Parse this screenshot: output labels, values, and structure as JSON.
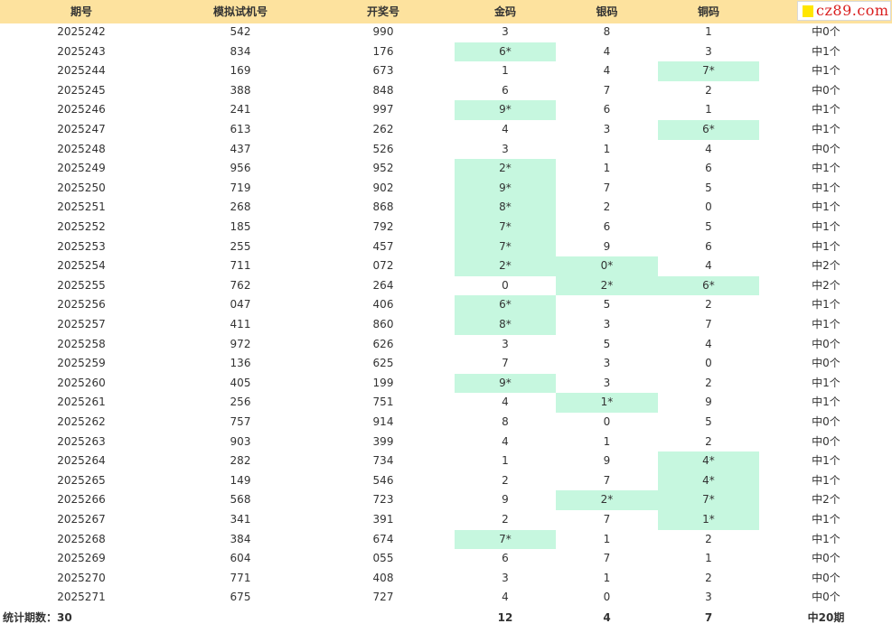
{
  "logo": {
    "text": "cz89.com",
    "accent": "#ffe600",
    "text_color": "#d91c1c"
  },
  "headers": {
    "period": "期号",
    "sim": "模拟试机号",
    "draw": "开奖号",
    "gold": "金码",
    "silver": "银码",
    "bronze": "铜码"
  },
  "colors": {
    "header_bg": "#fde29e",
    "hit_bg": "#c6f7df"
  },
  "rows": [
    {
      "period": "2025242",
      "sim": "542",
      "draw": "990",
      "gold": "3",
      "silver": "8",
      "bronze": "1",
      "result": "中0个",
      "hits": []
    },
    {
      "period": "2025243",
      "sim": "834",
      "draw": "176",
      "gold": "6*",
      "silver": "4",
      "bronze": "3",
      "result": "中1个",
      "hits": [
        "gold"
      ]
    },
    {
      "period": "2025244",
      "sim": "169",
      "draw": "673",
      "gold": "1",
      "silver": "4",
      "bronze": "7*",
      "result": "中1个",
      "hits": [
        "bronze"
      ]
    },
    {
      "period": "2025245",
      "sim": "388",
      "draw": "848",
      "gold": "6",
      "silver": "7",
      "bronze": "2",
      "result": "中0个",
      "hits": []
    },
    {
      "period": "2025246",
      "sim": "241",
      "draw": "997",
      "gold": "9*",
      "silver": "6",
      "bronze": "1",
      "result": "中1个",
      "hits": [
        "gold"
      ]
    },
    {
      "period": "2025247",
      "sim": "613",
      "draw": "262",
      "gold": "4",
      "silver": "3",
      "bronze": "6*",
      "result": "中1个",
      "hits": [
        "bronze"
      ]
    },
    {
      "period": "2025248",
      "sim": "437",
      "draw": "526",
      "gold": "3",
      "silver": "1",
      "bronze": "4",
      "result": "中0个",
      "hits": []
    },
    {
      "period": "2025249",
      "sim": "956",
      "draw": "952",
      "gold": "2*",
      "silver": "1",
      "bronze": "6",
      "result": "中1个",
      "hits": [
        "gold"
      ]
    },
    {
      "period": "2025250",
      "sim": "719",
      "draw": "902",
      "gold": "9*",
      "silver": "7",
      "bronze": "5",
      "result": "中1个",
      "hits": [
        "gold"
      ]
    },
    {
      "period": "2025251",
      "sim": "268",
      "draw": "868",
      "gold": "8*",
      "silver": "2",
      "bronze": "0",
      "result": "中1个",
      "hits": [
        "gold"
      ]
    },
    {
      "period": "2025252",
      "sim": "185",
      "draw": "792",
      "gold": "7*",
      "silver": "6",
      "bronze": "5",
      "result": "中1个",
      "hits": [
        "gold"
      ]
    },
    {
      "period": "2025253",
      "sim": "255",
      "draw": "457",
      "gold": "7*",
      "silver": "9",
      "bronze": "6",
      "result": "中1个",
      "hits": [
        "gold"
      ]
    },
    {
      "period": "2025254",
      "sim": "711",
      "draw": "072",
      "gold": "2*",
      "silver": "0*",
      "bronze": "4",
      "result": "中2个",
      "hits": [
        "gold",
        "silver"
      ]
    },
    {
      "period": "2025255",
      "sim": "762",
      "draw": "264",
      "gold": "0",
      "silver": "2*",
      "bronze": "6*",
      "result": "中2个",
      "hits": [
        "silver",
        "bronze"
      ]
    },
    {
      "period": "2025256",
      "sim": "047",
      "draw": "406",
      "gold": "6*",
      "silver": "5",
      "bronze": "2",
      "result": "中1个",
      "hits": [
        "gold"
      ]
    },
    {
      "period": "2025257",
      "sim": "411",
      "draw": "860",
      "gold": "8*",
      "silver": "3",
      "bronze": "7",
      "result": "中1个",
      "hits": [
        "gold"
      ]
    },
    {
      "period": "2025258",
      "sim": "972",
      "draw": "626",
      "gold": "3",
      "silver": "5",
      "bronze": "4",
      "result": "中0个",
      "hits": []
    },
    {
      "period": "2025259",
      "sim": "136",
      "draw": "625",
      "gold": "7",
      "silver": "3",
      "bronze": "0",
      "result": "中0个",
      "hits": []
    },
    {
      "period": "2025260",
      "sim": "405",
      "draw": "199",
      "gold": "9*",
      "silver": "3",
      "bronze": "2",
      "result": "中1个",
      "hits": [
        "gold"
      ]
    },
    {
      "period": "2025261",
      "sim": "256",
      "draw": "751",
      "gold": "4",
      "silver": "1*",
      "bronze": "9",
      "result": "中1个",
      "hits": [
        "silver"
      ]
    },
    {
      "period": "2025262",
      "sim": "757",
      "draw": "914",
      "gold": "8",
      "silver": "0",
      "bronze": "5",
      "result": "中0个",
      "hits": []
    },
    {
      "period": "2025263",
      "sim": "903",
      "draw": "399",
      "gold": "4",
      "silver": "1",
      "bronze": "2",
      "result": "中0个",
      "hits": []
    },
    {
      "period": "2025264",
      "sim": "282",
      "draw": "734",
      "gold": "1",
      "silver": "9",
      "bronze": "4*",
      "result": "中1个",
      "hits": [
        "bronze"
      ]
    },
    {
      "period": "2025265",
      "sim": "149",
      "draw": "546",
      "gold": "2",
      "silver": "7",
      "bronze": "4*",
      "result": "中1个",
      "hits": [
        "bronze"
      ]
    },
    {
      "period": "2025266",
      "sim": "568",
      "draw": "723",
      "gold": "9",
      "silver": "2*",
      "bronze": "7*",
      "result": "中2个",
      "hits": [
        "silver",
        "bronze"
      ]
    },
    {
      "period": "2025267",
      "sim": "341",
      "draw": "391",
      "gold": "2",
      "silver": "7",
      "bronze": "1*",
      "result": "中1个",
      "hits": [
        "bronze"
      ]
    },
    {
      "period": "2025268",
      "sim": "384",
      "draw": "674",
      "gold": "7*",
      "silver": "1",
      "bronze": "2",
      "result": "中1个",
      "hits": [
        "gold"
      ]
    },
    {
      "period": "2025269",
      "sim": "604",
      "draw": "055",
      "gold": "6",
      "silver": "7",
      "bronze": "1",
      "result": "中0个",
      "hits": []
    },
    {
      "period": "2025270",
      "sim": "771",
      "draw": "408",
      "gold": "3",
      "silver": "1",
      "bronze": "2",
      "result": "中0个",
      "hits": []
    },
    {
      "period": "2025271",
      "sim": "675",
      "draw": "727",
      "gold": "4",
      "silver": "0",
      "bronze": "3",
      "result": "中0个",
      "hits": []
    }
  ],
  "footer": {
    "periods_label": "统计期数：30",
    "gold_total": "12",
    "silver_total": "4",
    "bronze_total": "7",
    "result_total": "中20期"
  }
}
